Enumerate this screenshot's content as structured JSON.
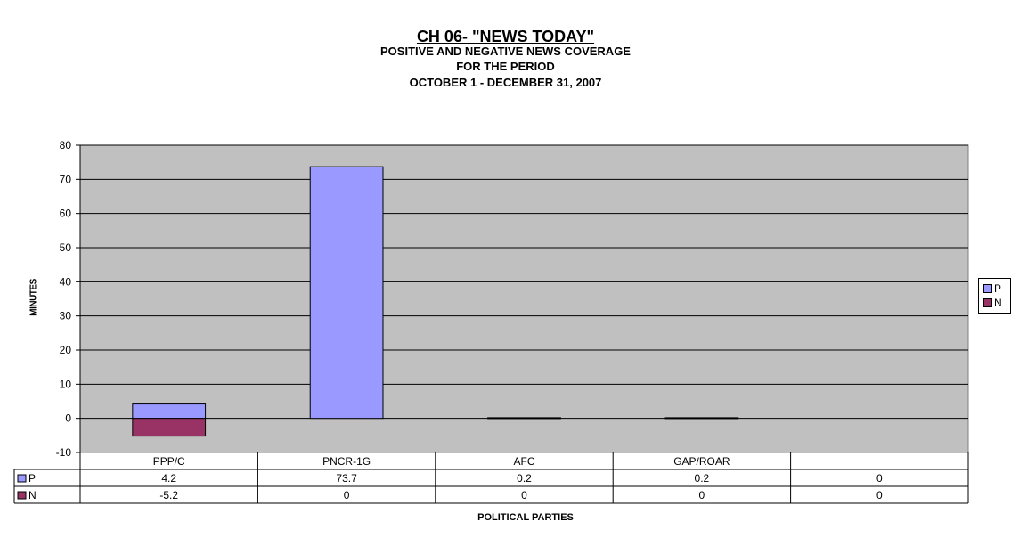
{
  "chart_data": {
    "type": "bar",
    "title": "CH 06- \"NEWS TODAY\"",
    "subtitle": [
      "POSITIVE AND NEGATIVE NEWS COVERAGE",
      "FOR THE PERIOD",
      "OCTOBER 1 - DECEMBER 31, 2007"
    ],
    "xlabel": "POLITICAL PARTIES",
    "ylabel": "MINUTES",
    "categories": [
      "PPP/C",
      "PNCR-1G",
      "AFC",
      "GAP/ROAR",
      ""
    ],
    "series": [
      {
        "name": "P",
        "color": "#9999ff",
        "values": [
          4.2,
          73.7,
          0.2,
          0.2,
          0
        ]
      },
      {
        "name": "N",
        "color": "#993366",
        "values": [
          -5.2,
          0,
          0,
          0,
          0
        ]
      }
    ],
    "table_values": {
      "P": [
        "4.2",
        "73.7",
        "0.2",
        "0.2",
        "0"
      ],
      "N": [
        "-5.2",
        "0",
        "0",
        "0",
        "0"
      ]
    },
    "ylim": [
      -10,
      80
    ],
    "yticks": [
      -10,
      0,
      10,
      20,
      30,
      40,
      50,
      60,
      70,
      80
    ],
    "grid": true,
    "stacked": true,
    "plot_background": "#c0c0c0",
    "legend_position": "right",
    "data_table": true
  }
}
